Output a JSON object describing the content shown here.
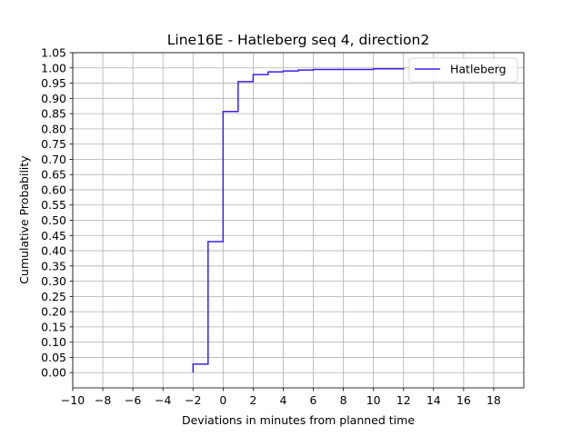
{
  "chart_data": {
    "type": "line",
    "step": "post",
    "title": "Line16E - Hatleberg seq 4, direction2",
    "xlabel": "Deviations in minutes from planned time",
    "ylabel": "Cumulative Probability",
    "xlim": [
      -10,
      20
    ],
    "ylim": [
      -0.05,
      1.05
    ],
    "xticks": [
      -10,
      -8,
      -6,
      -4,
      -2,
      0,
      2,
      4,
      6,
      8,
      10,
      12,
      14,
      16,
      18
    ],
    "xtick_labels": [
      "−10",
      "−8",
      "−6",
      "−4",
      "−2",
      "0",
      "2",
      "4",
      "6",
      "8",
      "10",
      "12",
      "14",
      "16",
      "18"
    ],
    "yticks": [
      0,
      0.05,
      0.1,
      0.15,
      0.2,
      0.25,
      0.3,
      0.35,
      0.4,
      0.45,
      0.5,
      0.55,
      0.6,
      0.65,
      0.7,
      0.75,
      0.8,
      0.85,
      0.9,
      0.95,
      1.0,
      1.05
    ],
    "ytick_labels": [
      "0.00",
      "0.05",
      "0.10",
      "0.15",
      "0.20",
      "0.25",
      "0.30",
      "0.35",
      "0.40",
      "0.45",
      "0.50",
      "0.55",
      "0.60",
      "0.65",
      "0.70",
      "0.75",
      "0.80",
      "0.85",
      "0.90",
      "0.95",
      "1.00",
      "1.05"
    ],
    "grid": true,
    "legend_position": "top-right",
    "series": [
      {
        "name": "Hatleberg",
        "color": "#3a22e8",
        "x": [
          -2,
          -2,
          -1,
          0,
          1,
          2,
          3,
          4,
          5,
          6,
          10,
          12
        ],
        "y": [
          0.0,
          0.028,
          0.43,
          0.857,
          0.955,
          0.978,
          0.987,
          0.99,
          0.993,
          0.995,
          0.997,
          1.0
        ]
      }
    ]
  }
}
